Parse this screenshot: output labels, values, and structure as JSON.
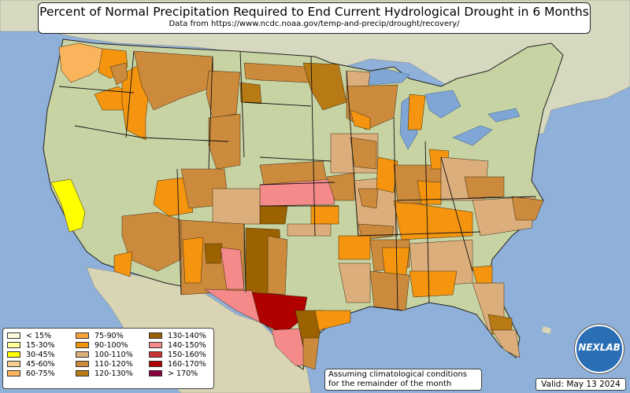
{
  "header": {
    "title": "Percent of Normal Precipitation Required to End Current Hydrological Drought in 6 Months",
    "subtitle": "Data from https://www.ncdc.noaa.gov/temp-and-precip/drought/recovery/"
  },
  "legend": {
    "items": [
      {
        "label": "< 15%",
        "color": "#ffffe0"
      },
      {
        "label": "15-30%",
        "color": "#ffff99"
      },
      {
        "label": "30-45%",
        "color": "#ffff00"
      },
      {
        "label": "45-60%",
        "color": "#f8cf8f"
      },
      {
        "label": "60-75%",
        "color": "#f9b45c"
      },
      {
        "label": "75-90%",
        "color": "#f8a23a"
      },
      {
        "label": "90-100%",
        "color": "#f5950f"
      },
      {
        "label": "100-110%",
        "color": "#dcae7c"
      },
      {
        "label": "110-120%",
        "color": "#cc8a3c"
      },
      {
        "label": "120-130%",
        "color": "#b87a14"
      },
      {
        "label": "130-140%",
        "color": "#9c6200"
      },
      {
        "label": "140-150%",
        "color": "#f58a8a"
      },
      {
        "label": "150-160%",
        "color": "#cc3333"
      },
      {
        "label": "160-170%",
        "color": "#b00000"
      },
      {
        "label": "> 170%",
        "color": "#8b0040"
      }
    ]
  },
  "note": {
    "line1": "Assuming climatological conditions",
    "line2": "for the remainder of the month"
  },
  "valid": "Valid: May 13 2024",
  "logo": "NEXLAB",
  "colors": {
    "ocean": "#8fb0d8",
    "land": "#c9d6a8",
    "foreign_land": "#d8dcc4",
    "lakes": "#7fa6d4",
    "border": "#222222"
  }
}
